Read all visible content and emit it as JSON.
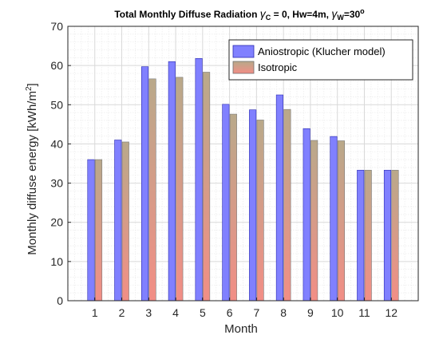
{
  "colors": {
    "series_1": "#8080ff",
    "series_1_edge": "#2a2ab0",
    "series_2_top": "#b9a98a",
    "series_2_bottom": "#f28e86",
    "grid_major": "#d9d9d9",
    "grid_minor": "#ededed",
    "axis": "#262626"
  },
  "chart_data": {
    "type": "bar",
    "title": "Total Monthly Diffuse Radiation γC = 0, Hw=4m, γW=30°",
    "title_parts": {
      "main": "Total Monthly Diffuse Radiation ",
      "gamma_c": "γ",
      "c_sub": "C",
      "middle": " = 0, Hw=4m, ",
      "gamma_w": "γ",
      "w_sub": "W",
      "end": "=30",
      "degree": "o"
    },
    "xlabel": "Month",
    "ylabel": "Monthly diffuse energy [kWh/m²]",
    "ylabel_parts": {
      "main": "Monthly diffuse energy [kWh/m",
      "sup": "2",
      "end": "]"
    },
    "categories": [
      "1",
      "2",
      "3",
      "4",
      "5",
      "6",
      "7",
      "8",
      "9",
      "10",
      "11",
      "12"
    ],
    "series": [
      {
        "name": "Aniostropic (Klucher model)",
        "values": [
          36.0,
          41.0,
          59.7,
          61.0,
          61.8,
          50.1,
          48.7,
          52.5,
          43.9,
          41.9,
          33.3,
          33.3
        ]
      },
      {
        "name": "Isotropic",
        "values": [
          36.0,
          40.5,
          56.6,
          57.0,
          58.3,
          47.6,
          46.1,
          48.8,
          40.9,
          40.8,
          33.3,
          33.3
        ]
      }
    ],
    "yticks": [
      "0",
      "10",
      "20",
      "30",
      "40",
      "50",
      "60",
      "70"
    ],
    "ylim": [
      0,
      70
    ],
    "grid": true,
    "minor_grid": true,
    "legend_position": "top-right"
  }
}
